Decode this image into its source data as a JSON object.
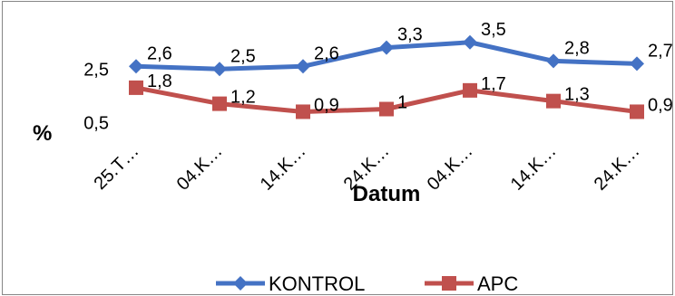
{
  "chart_data": {
    "type": "line",
    "title": "",
    "xlabel": "Datum",
    "ylabel": "%",
    "categories": [
      "25.T…",
      "04.K…",
      "14.K…",
      "24.K…",
      "04.K…",
      "14.K…",
      "24.K…"
    ],
    "yticks": [
      "2,5",
      "0,5"
    ],
    "ylim": [
      0,
      4
    ],
    "grid": false,
    "legend": "bottom",
    "series": [
      {
        "name": "KONTROL",
        "color": "#4472C4",
        "marker": "diamond",
        "values": [
          2.6,
          2.5,
          2.6,
          3.3,
          3.5,
          2.8,
          2.7
        ],
        "labels": [
          "2,6",
          "2,5",
          "2,6",
          "3,3",
          "3,5",
          "2,8",
          "2,7"
        ]
      },
      {
        "name": "APC",
        "color": "#C0504D",
        "marker": "square",
        "values": [
          1.8,
          1.2,
          0.9,
          1.0,
          1.7,
          1.3,
          0.9
        ],
        "labels": [
          "1,8",
          "1,2",
          "0,9",
          "1",
          "1,7",
          "1,3",
          "0,9"
        ]
      }
    ]
  }
}
